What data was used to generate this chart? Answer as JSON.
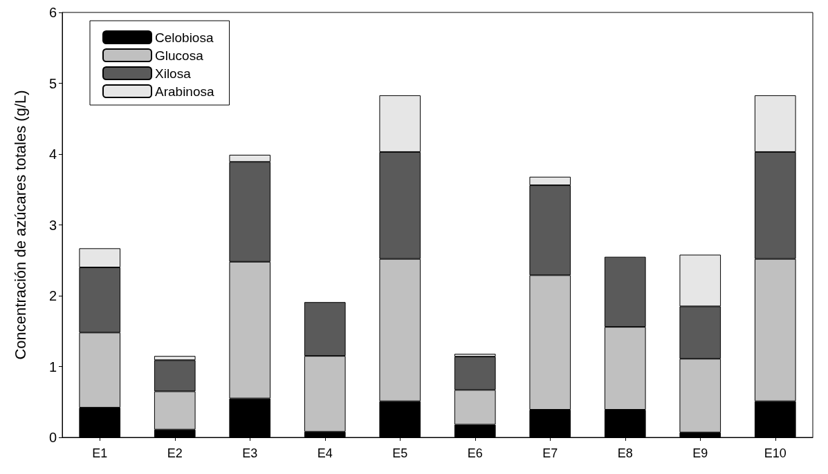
{
  "chart_data": {
    "type": "bar",
    "stacked": true,
    "ylabel": "Concentración de azúcares totales (g/L)",
    "categories": [
      "E1",
      "E2",
      "E3",
      "E4",
      "E5",
      "E6",
      "E7",
      "E8",
      "E9",
      "E10"
    ],
    "series": [
      {
        "name": "Celobiosa",
        "color": "#000000",
        "values": [
          0.42,
          0.11,
          0.55,
          0.08,
          0.51,
          0.18,
          0.39,
          0.39,
          0.07,
          0.51
        ]
      },
      {
        "name": "Glucosa",
        "color": "#c0c0c0",
        "values": [
          1.06,
          0.54,
          1.93,
          1.07,
          2.01,
          0.49,
          1.9,
          1.17,
          1.04,
          2.01
        ]
      },
      {
        "name": "Xilosa",
        "color": "#5a5a5a",
        "values": [
          0.92,
          0.44,
          1.41,
          0.76,
          1.51,
          0.47,
          1.27,
          0.99,
          0.74,
          1.51
        ]
      },
      {
        "name": "Arabinosa",
        "color": "#e6e6e6",
        "values": [
          0.27,
          0.06,
          0.1,
          null,
          0.8,
          0.04,
          0.12,
          null,
          0.73,
          0.8
        ]
      }
    ],
    "ylim": [
      0,
      6
    ],
    "yticks": [
      0,
      1,
      2,
      3,
      4,
      5,
      6
    ],
    "grid": false,
    "legend": "top left"
  }
}
